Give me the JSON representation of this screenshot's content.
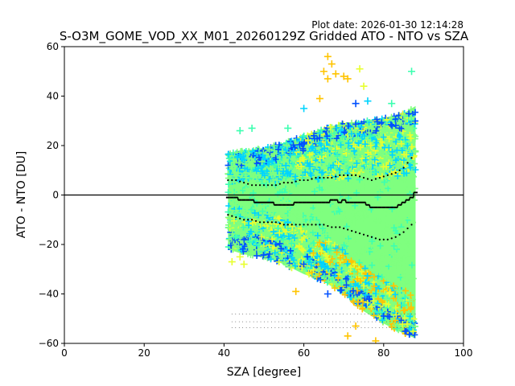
{
  "chart_data": {
    "type": "scatter",
    "plot_date": "Plot date: 2026-01-30 12:14:28",
    "title": "S-O3M_GOME_VOD_XX_M01_20260129Z Gridded ATO - NTO vs SZA",
    "xlabel": "SZA [degree]",
    "ylabel": "ATO - NTO [DU]",
    "xlim": [
      0,
      100
    ],
    "ylim": [
      -60,
      60
    ],
    "xticks": [
      0,
      20,
      40,
      60,
      80,
      100
    ],
    "yticks": [
      -60,
      -40,
      -20,
      0,
      20,
      40,
      60
    ],
    "reference_line_y": 0,
    "colors": {
      "green": "#7fff7f",
      "cyan": "#00d4ff",
      "blue": "#0050ff",
      "yellow": "#e8ff30",
      "orange": "#ffc400",
      "aqua": "#3cffb0"
    },
    "envelope": {
      "x": [
        41,
        45,
        50,
        55,
        60,
        65,
        70,
        75,
        80,
        85,
        88
      ],
      "upper": [
        17,
        18,
        19,
        21,
        24,
        27,
        29,
        30,
        31,
        33,
        36
      ],
      "lower": [
        -22,
        -24,
        -25,
        -28,
        -32,
        -35,
        -40,
        -47,
        -52,
        -56,
        -58
      ]
    },
    "sparse_points": [
      {
        "x": 66,
        "y": 56,
        "color": "orange"
      },
      {
        "x": 67,
        "y": 53,
        "color": "orange"
      },
      {
        "x": 65,
        "y": 50,
        "color": "orange"
      },
      {
        "x": 68,
        "y": 49,
        "color": "orange"
      },
      {
        "x": 70,
        "y": 48,
        "color": "orange"
      },
      {
        "x": 71,
        "y": 47,
        "color": "orange"
      },
      {
        "x": 66,
        "y": 47,
        "color": "orange"
      },
      {
        "x": 75,
        "y": 44,
        "color": "yellow"
      },
      {
        "x": 74,
        "y": 51,
        "color": "yellow"
      },
      {
        "x": 87,
        "y": 50,
        "color": "aqua"
      },
      {
        "x": 82,
        "y": 37,
        "color": "aqua"
      },
      {
        "x": 60,
        "y": 35,
        "color": "cyan"
      },
      {
        "x": 47,
        "y": 27,
        "color": "aqua"
      },
      {
        "x": 44,
        "y": 26,
        "color": "aqua"
      },
      {
        "x": 56,
        "y": 27,
        "color": "aqua"
      },
      {
        "x": 73,
        "y": 37,
        "color": "blue"
      },
      {
        "x": 76,
        "y": 38,
        "color": "cyan"
      },
      {
        "x": 64,
        "y": 39,
        "color": "orange"
      },
      {
        "x": 58,
        "y": -39,
        "color": "orange"
      },
      {
        "x": 66,
        "y": -40,
        "color": "blue"
      },
      {
        "x": 42,
        "y": -27,
        "color": "yellow"
      },
      {
        "x": 45,
        "y": -28,
        "color": "yellow"
      },
      {
        "x": 44,
        "y": -25,
        "color": "yellow"
      },
      {
        "x": 71,
        "y": -57,
        "color": "orange"
      },
      {
        "x": 73,
        "y": -53,
        "color": "orange"
      },
      {
        "x": 78,
        "y": -59,
        "color": "orange"
      }
    ],
    "mean_line": {
      "x": [
        41,
        42,
        43,
        44,
        45,
        46,
        47,
        48,
        49,
        50,
        51,
        52,
        53,
        54,
        55,
        56,
        57,
        58,
        59,
        60,
        61,
        62,
        63,
        64,
        65,
        66,
        67,
        68,
        69,
        70,
        71,
        72,
        73,
        74,
        75,
        76,
        77,
        78,
        79,
        80,
        81,
        82,
        83,
        84,
        85,
        86,
        87,
        88
      ],
      "y": [
        -1,
        -1,
        -1,
        -2,
        -2,
        -2,
        -2,
        -3,
        -3,
        -3,
        -3,
        -3,
        -4,
        -4,
        -4,
        -4,
        -4,
        -3,
        -3,
        -3,
        -3,
        -3,
        -3,
        -3,
        -3,
        -3,
        -2,
        -2,
        -3,
        -2,
        -3,
        -3,
        -3,
        -3,
        -3,
        -4,
        -5,
        -5,
        -5,
        -5,
        -5,
        -5,
        -5,
        -4,
        -3,
        -2,
        -1,
        1
      ]
    },
    "upper_dots": {
      "x": [
        41,
        43,
        45,
        47,
        49,
        51,
        53,
        55,
        57,
        59,
        61,
        63,
        65,
        67,
        69,
        71,
        73,
        75,
        77,
        79,
        81,
        83,
        85,
        87
      ],
      "y": [
        6,
        6,
        5,
        4,
        4,
        4,
        4,
        5,
        5,
        6,
        6,
        7,
        7,
        7,
        8,
        8,
        8,
        7,
        6,
        7,
        8,
        9,
        11,
        15
      ]
    },
    "lower_dots": {
      "x": [
        41,
        43,
        45,
        47,
        49,
        51,
        53,
        55,
        57,
        59,
        61,
        63,
        65,
        67,
        69,
        71,
        73,
        75,
        77,
        79,
        81,
        83,
        85,
        87
      ],
      "y": [
        -8,
        -9,
        -10,
        -10,
        -11,
        -11,
        -11,
        -12,
        -12,
        -12,
        -12,
        -12,
        -12,
        -13,
        -13,
        -14,
        -15,
        -16,
        -17,
        -18,
        -18,
        -17,
        -15,
        -12
      ]
    },
    "count_labels_y": [
      -49,
      -52,
      -54.5
    ],
    "count_labels_x_range": [
      42,
      88
    ]
  }
}
